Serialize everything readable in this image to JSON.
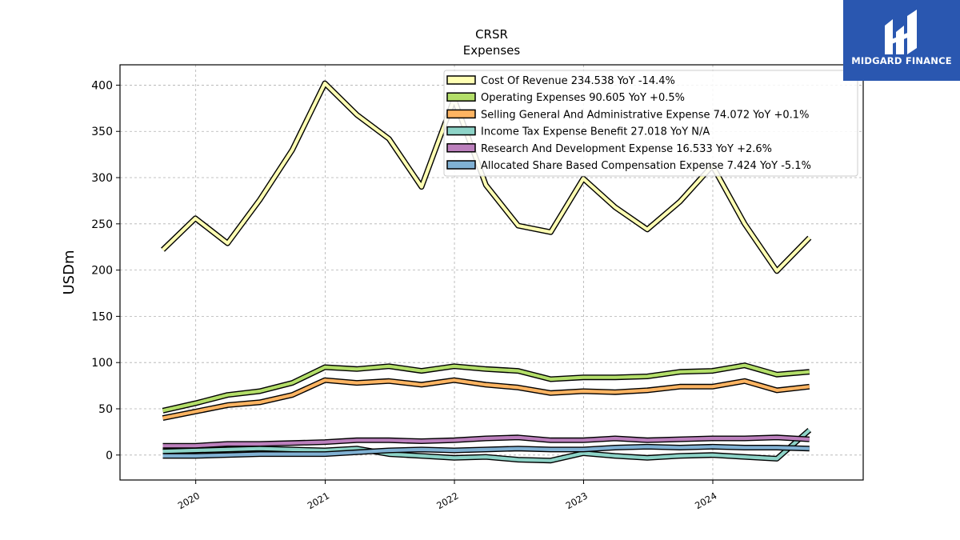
{
  "brand": {
    "name": "MIDGARD FINANCE",
    "icon": "midgard-logo-icon",
    "color": "#2a57b0"
  },
  "chart_data": {
    "type": "line",
    "title": "CRSR",
    "subtitle": "Expenses",
    "ylabel": "USDm",
    "xlabel": "",
    "ylim": [
      -27,
      422
    ],
    "yticks": [
      0,
      50,
      100,
      150,
      200,
      250,
      300,
      350,
      400
    ],
    "xticks": [
      "2020",
      "2021",
      "2022",
      "2023",
      "2024"
    ],
    "grid": true,
    "legend_position": "top-right",
    "x": [
      "2019-09-30",
      "2019-12-31",
      "2020-03-31",
      "2020-06-30",
      "2020-09-30",
      "2020-12-31",
      "2021-03-31",
      "2021-06-30",
      "2021-09-30",
      "2021-12-31",
      "2022-03-31",
      "2022-06-30",
      "2022-09-30",
      "2022-12-31",
      "2023-03-31",
      "2023-06-30",
      "2023-09-30",
      "2023-12-31",
      "2024-03-31",
      "2024-06-30",
      "2024-09-30"
    ],
    "series": [
      {
        "name": "Cost Of Revenue",
        "legend": "Cost Of Revenue  234.538 YoY -14.4%",
        "color": "#ffffb3",
        "values": [
          222,
          256,
          229,
          276,
          330,
          402,
          368,
          342,
          290,
          385,
          292,
          248,
          241,
          299,
          268,
          244,
          274,
          313,
          250,
          199,
          235
        ]
      },
      {
        "name": "Operating Expenses",
        "legend": "Operating Expenses  90.605 YoY +0.5%",
        "color": "#b3de69",
        "values": [
          48,
          56,
          65,
          69,
          78,
          95,
          93,
          96,
          91,
          96,
          93,
          91,
          82,
          84,
          84,
          85,
          90,
          91,
          97,
          87,
          90
        ]
      },
      {
        "name": "Selling General And Administrative Expense",
        "legend": "Selling General And Administrative Expense  74.072 YoY +0.1%",
        "color": "#fdb462",
        "values": [
          40,
          47,
          54,
          57,
          65,
          81,
          78,
          80,
          76,
          81,
          76,
          73,
          67,
          69,
          68,
          70,
          74,
          74,
          80,
          70,
          74
        ]
      },
      {
        "name": "Income Tax Expense Benefit",
        "legend": "Income Tax Expense Benefit  27.018 YoY N/A",
        "color": "#8dd3c7",
        "values": [
          4,
          5,
          6,
          7,
          6,
          5,
          7,
          1,
          -1,
          -3,
          -2,
          -5,
          -6,
          2,
          -1,
          -3,
          -1,
          0,
          -2,
          -4,
          27
        ]
      },
      {
        "name": "Research And Development Expense",
        "legend": "Research And Development Expense  16.533 YoY +2.6%",
        "color": "#bc80bd",
        "values": [
          10,
          10,
          12,
          12,
          13,
          14,
          16,
          16,
          15,
          16,
          18,
          19,
          16,
          16,
          18,
          16,
          17,
          18,
          18,
          19,
          17
        ]
      },
      {
        "name": "Allocated Share Based Compensation Expense",
        "legend": "Allocated Share Based Compensation Expense  7.424 YoY -5.1%",
        "color": "#80b1d3",
        "values": [
          -1,
          -1,
          0,
          1,
          1,
          1,
          3,
          5,
          6,
          5,
          6,
          7,
          6,
          6,
          8,
          9,
          8,
          9,
          8,
          8,
          7
        ]
      }
    ]
  }
}
